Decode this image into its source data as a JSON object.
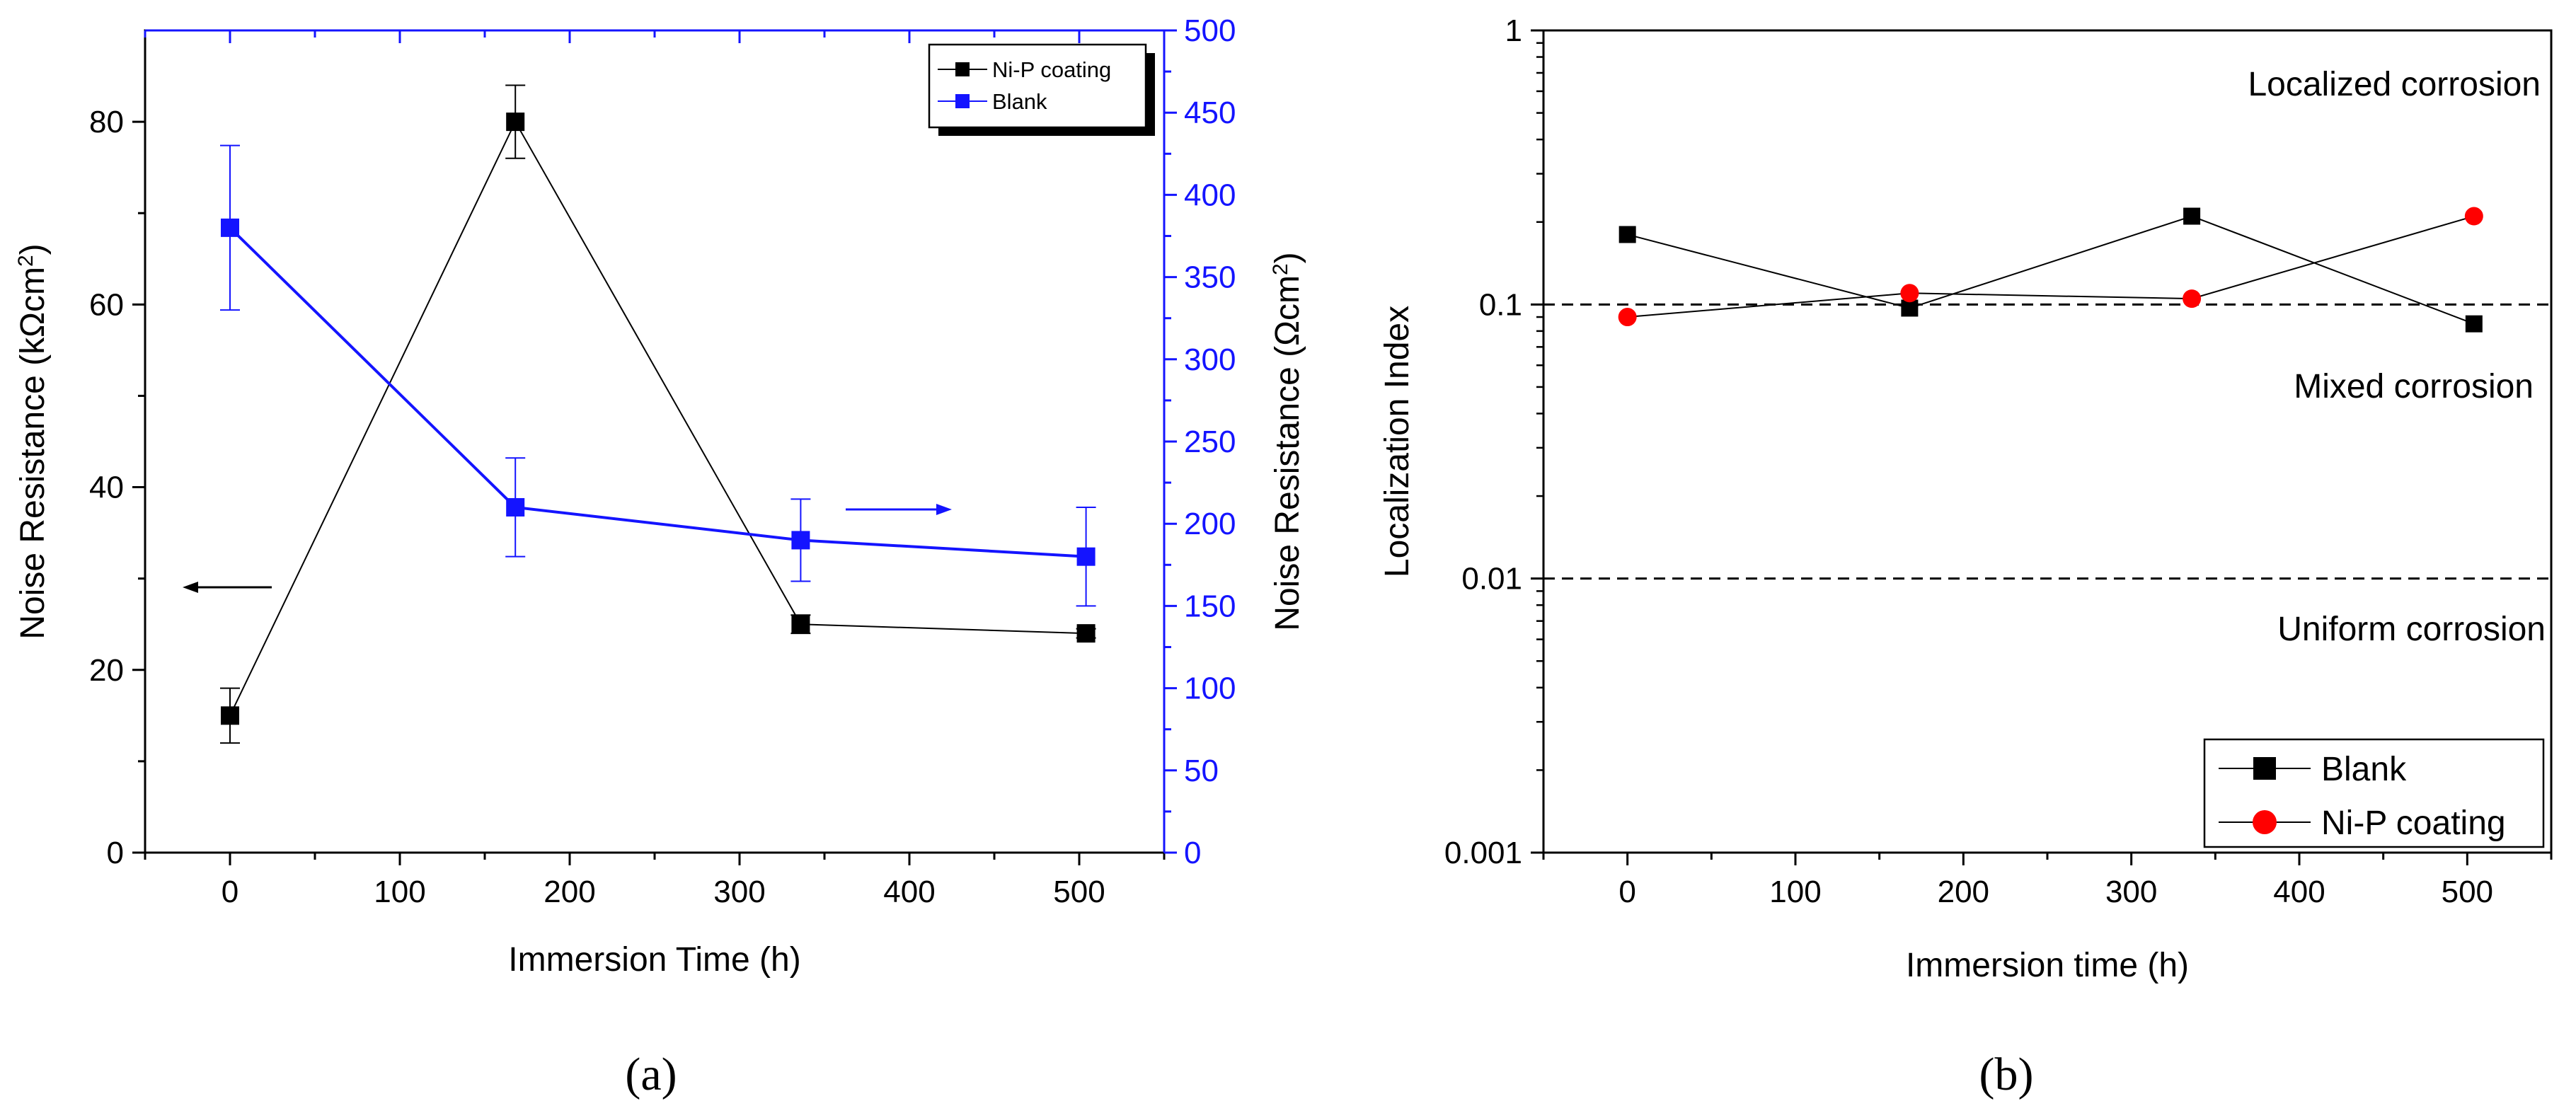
{
  "chart_data": [
    {
      "type": "line",
      "panel_label": "(a)",
      "xlabel": "Immersion Time (h)",
      "ylabel": "Noise Resistance (kΩcm",
      "ylabel_sup": "2",
      "ylabel_close": ")",
      "y2label": "Noise Resistance (Ωcm",
      "y2label_sup": "2",
      "y2label_close": ")",
      "xlim": [
        -50,
        550
      ],
      "ylim": [
        0,
        90
      ],
      "y2lim": [
        0,
        500
      ],
      "xticks": [
        0,
        100,
        200,
        300,
        400,
        500
      ],
      "yticks": [
        0,
        20,
        40,
        60,
        80
      ],
      "y2ticks": [
        0,
        50,
        100,
        150,
        200,
        250,
        300,
        350,
        400,
        450,
        500
      ],
      "series": [
        {
          "name": "Ni-P coating",
          "axis": "left",
          "color": "#000000",
          "marker": "square",
          "x": [
            0,
            168,
            336,
            504
          ],
          "y": [
            15,
            80,
            25,
            24
          ],
          "err": [
            3,
            4,
            1,
            0.5
          ]
        },
        {
          "name": "Blank",
          "axis": "right",
          "color": "#1414ff",
          "marker": "square",
          "x": [
            0,
            168,
            336,
            504
          ],
          "y": [
            380,
            210,
            190,
            180
          ],
          "err": [
            50,
            30,
            25,
            30
          ]
        }
      ],
      "legend": [
        "Ni-P coating",
        "Blank"
      ],
      "legend_position": "top-right"
    },
    {
      "type": "line",
      "panel_label": "(b)",
      "xlabel": "Immersion time (h)",
      "ylabel": "Localization Index",
      "xlim": [
        -50,
        550
      ],
      "ylim": [
        0.001,
        1
      ],
      "yscale": "log",
      "xticks": [
        0,
        100,
        200,
        300,
        400,
        500
      ],
      "yticks": [
        0.001,
        0.01,
        0.1,
        1
      ],
      "ytick_labels": [
        "0.001",
        "0.01",
        "0.1",
        "1"
      ],
      "reference_lines": [
        0.1,
        0.01
      ],
      "annotations": [
        "Localized corrosion",
        "Mixed corrosion",
        "Uniform corrosion"
      ],
      "series": [
        {
          "name": "Blank",
          "color": "#000000",
          "marker": "square",
          "x": [
            0,
            168,
            336,
            504
          ],
          "y": [
            0.18,
            0.097,
            0.21,
            0.085
          ]
        },
        {
          "name": "Ni-P coating",
          "color": "#ff0000",
          "marker": "circle",
          "x": [
            0,
            168,
            336,
            504
          ],
          "y": [
            0.09,
            0.11,
            0.105,
            0.21
          ]
        }
      ],
      "legend": [
        "Blank",
        "Ni-P coating"
      ],
      "legend_position": "bottom-right"
    }
  ]
}
